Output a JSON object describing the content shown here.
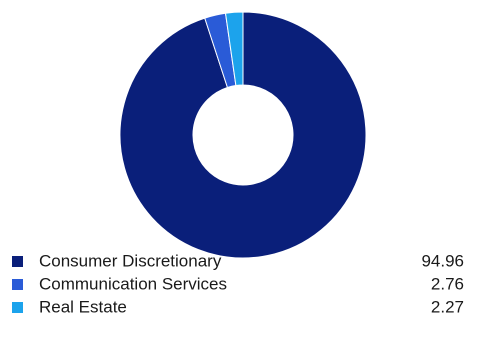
{
  "chart_data": {
    "type": "pie",
    "donut": true,
    "categories": [
      "Consumer Discretionary",
      "Communication Services",
      "Real Estate"
    ],
    "values": [
      94.96,
      2.76,
      2.27
    ],
    "value_labels": [
      "94.96",
      "2.76",
      "2.27"
    ],
    "colors": [
      "#0a1f7a",
      "#2a5bd7",
      "#1ca3ec"
    ],
    "start": "12 o'clock",
    "direction": "clockwise",
    "legend_placement": "bottom"
  }
}
